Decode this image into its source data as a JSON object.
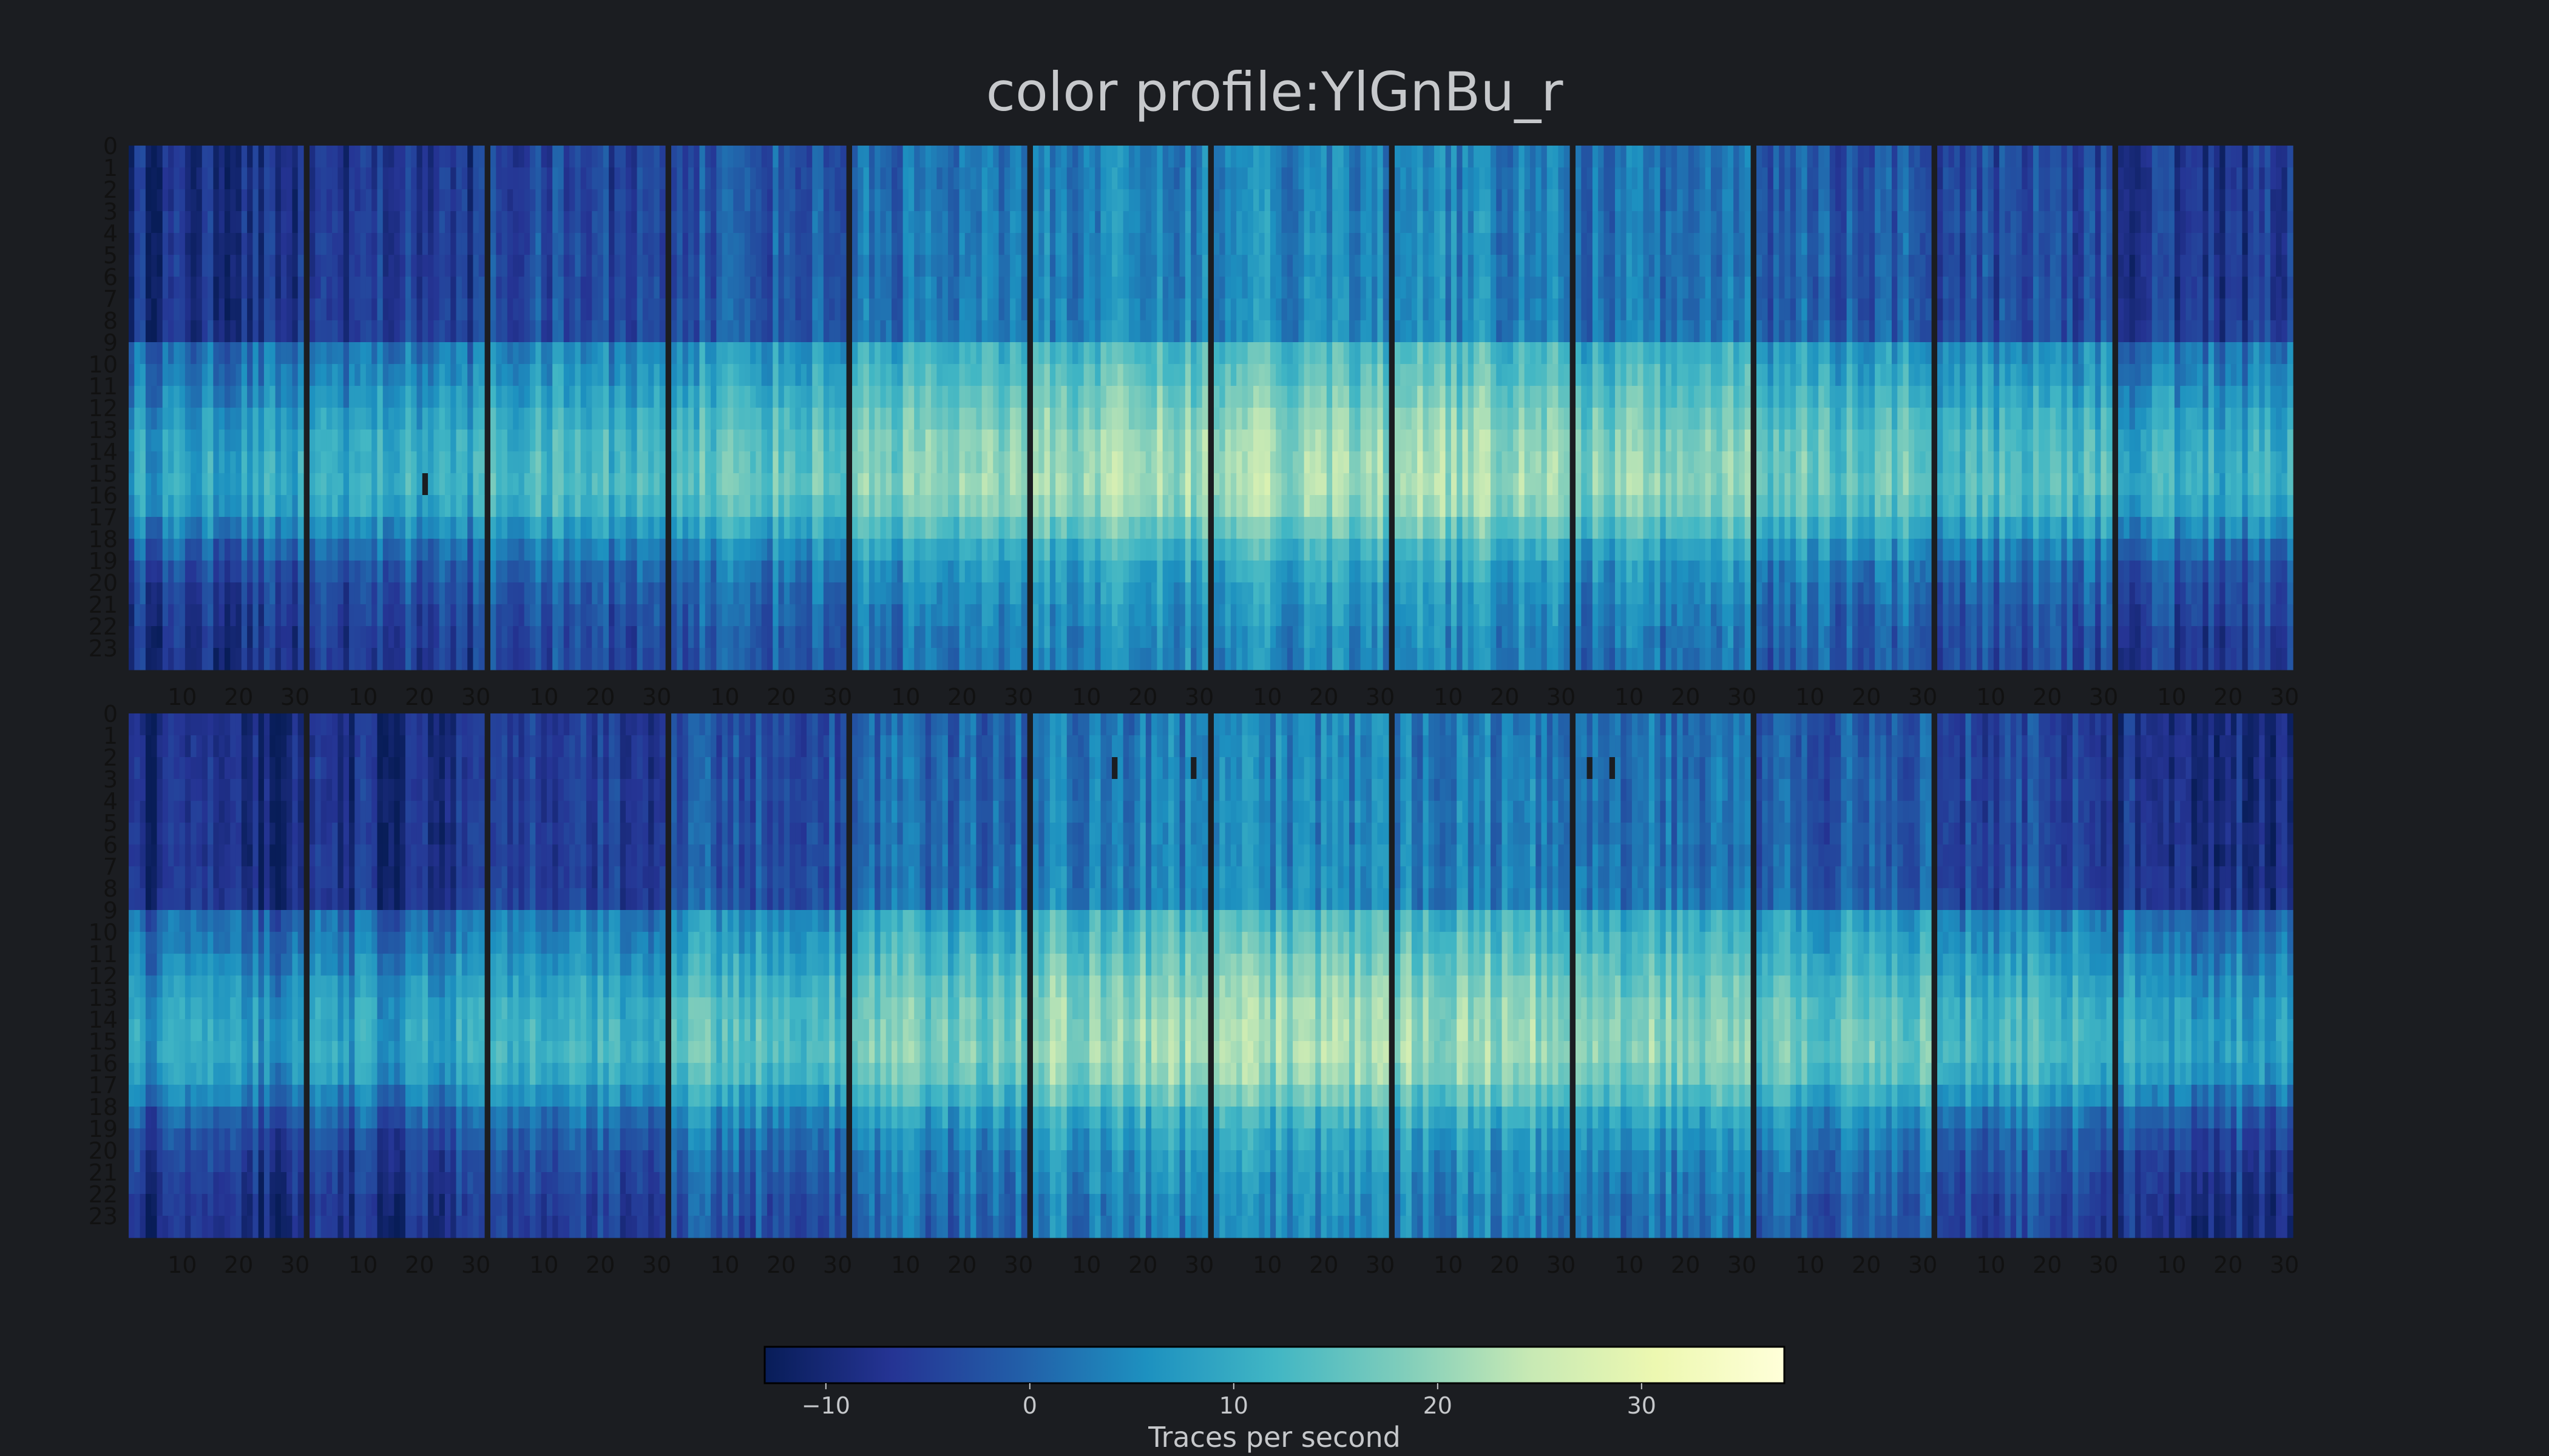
{
  "title": "color profile:YlGnBu_r",
  "colors": {
    "background": "#1b1d21",
    "panel_gap": "#1b1d21",
    "title_text": "#c6c8cb",
    "tick_text": "#111111",
    "colormap": [
      "#081d58",
      "#253494",
      "#225ea8",
      "#1d91c0",
      "#41b6c4",
      "#7fcdbb",
      "#c7e9b4",
      "#edf8b1",
      "#ffffd9"
    ]
  },
  "chart_data": {
    "type": "heatmap",
    "colormap": "YlGnBu_r",
    "layout": "2 rows x 12 monthly panels",
    "months_per_row": 12,
    "days_per_month": 31,
    "y_categories": [
      "0",
      "1",
      "2",
      "3",
      "4",
      "5",
      "6",
      "7",
      "8",
      "9",
      "10",
      "11",
      "12",
      "13",
      "14",
      "15",
      "16",
      "17",
      "18",
      "19",
      "20",
      "21",
      "22",
      "23"
    ],
    "x_tick_labels": [
      "10",
      "20",
      "30"
    ],
    "colorbar": {
      "label": "Traces per second",
      "ticks": [
        "−10",
        "0",
        "10",
        "20",
        "30"
      ],
      "tick_values": [
        -10,
        0,
        10,
        20,
        30
      ],
      "range": [
        -13,
        37
      ]
    },
    "missing_cells": [
      {
        "row": 0,
        "month": 1,
        "day": 20,
        "hour": 15
      },
      {
        "row": 1,
        "month": 5,
        "day": 14,
        "hour": 2
      },
      {
        "row": 1,
        "month": 5,
        "day": 28,
        "hour": 2
      },
      {
        "row": 1,
        "month": 8,
        "day": 2,
        "hour": 2
      },
      {
        "row": 1,
        "month": 8,
        "day": 6,
        "hour": 2
      }
    ],
    "monthly_mean_level": [
      [
        0.27,
        0.33,
        0.4,
        0.48,
        0.58,
        0.66,
        0.68,
        0.67,
        0.58,
        0.5,
        0.4,
        0.32
      ],
      [
        0.22,
        0.27,
        0.35,
        0.44,
        0.54,
        0.64,
        0.67,
        0.65,
        0.58,
        0.48,
        0.38,
        0.28
      ]
    ],
    "hourly_profile": [
      0.08,
      0.09,
      0.09,
      0.1,
      0.1,
      0.1,
      0.1,
      0.11,
      0.12,
      0.42,
      0.48,
      0.55,
      0.62,
      0.68,
      0.7,
      0.72,
      0.66,
      0.52,
      0.36,
      0.26,
      0.2,
      0.16,
      0.12,
      0.1
    ],
    "description_levels": "0 = darkest (approx −13 traces/s), 1 = brightest (approx 37 traces/s)"
  }
}
